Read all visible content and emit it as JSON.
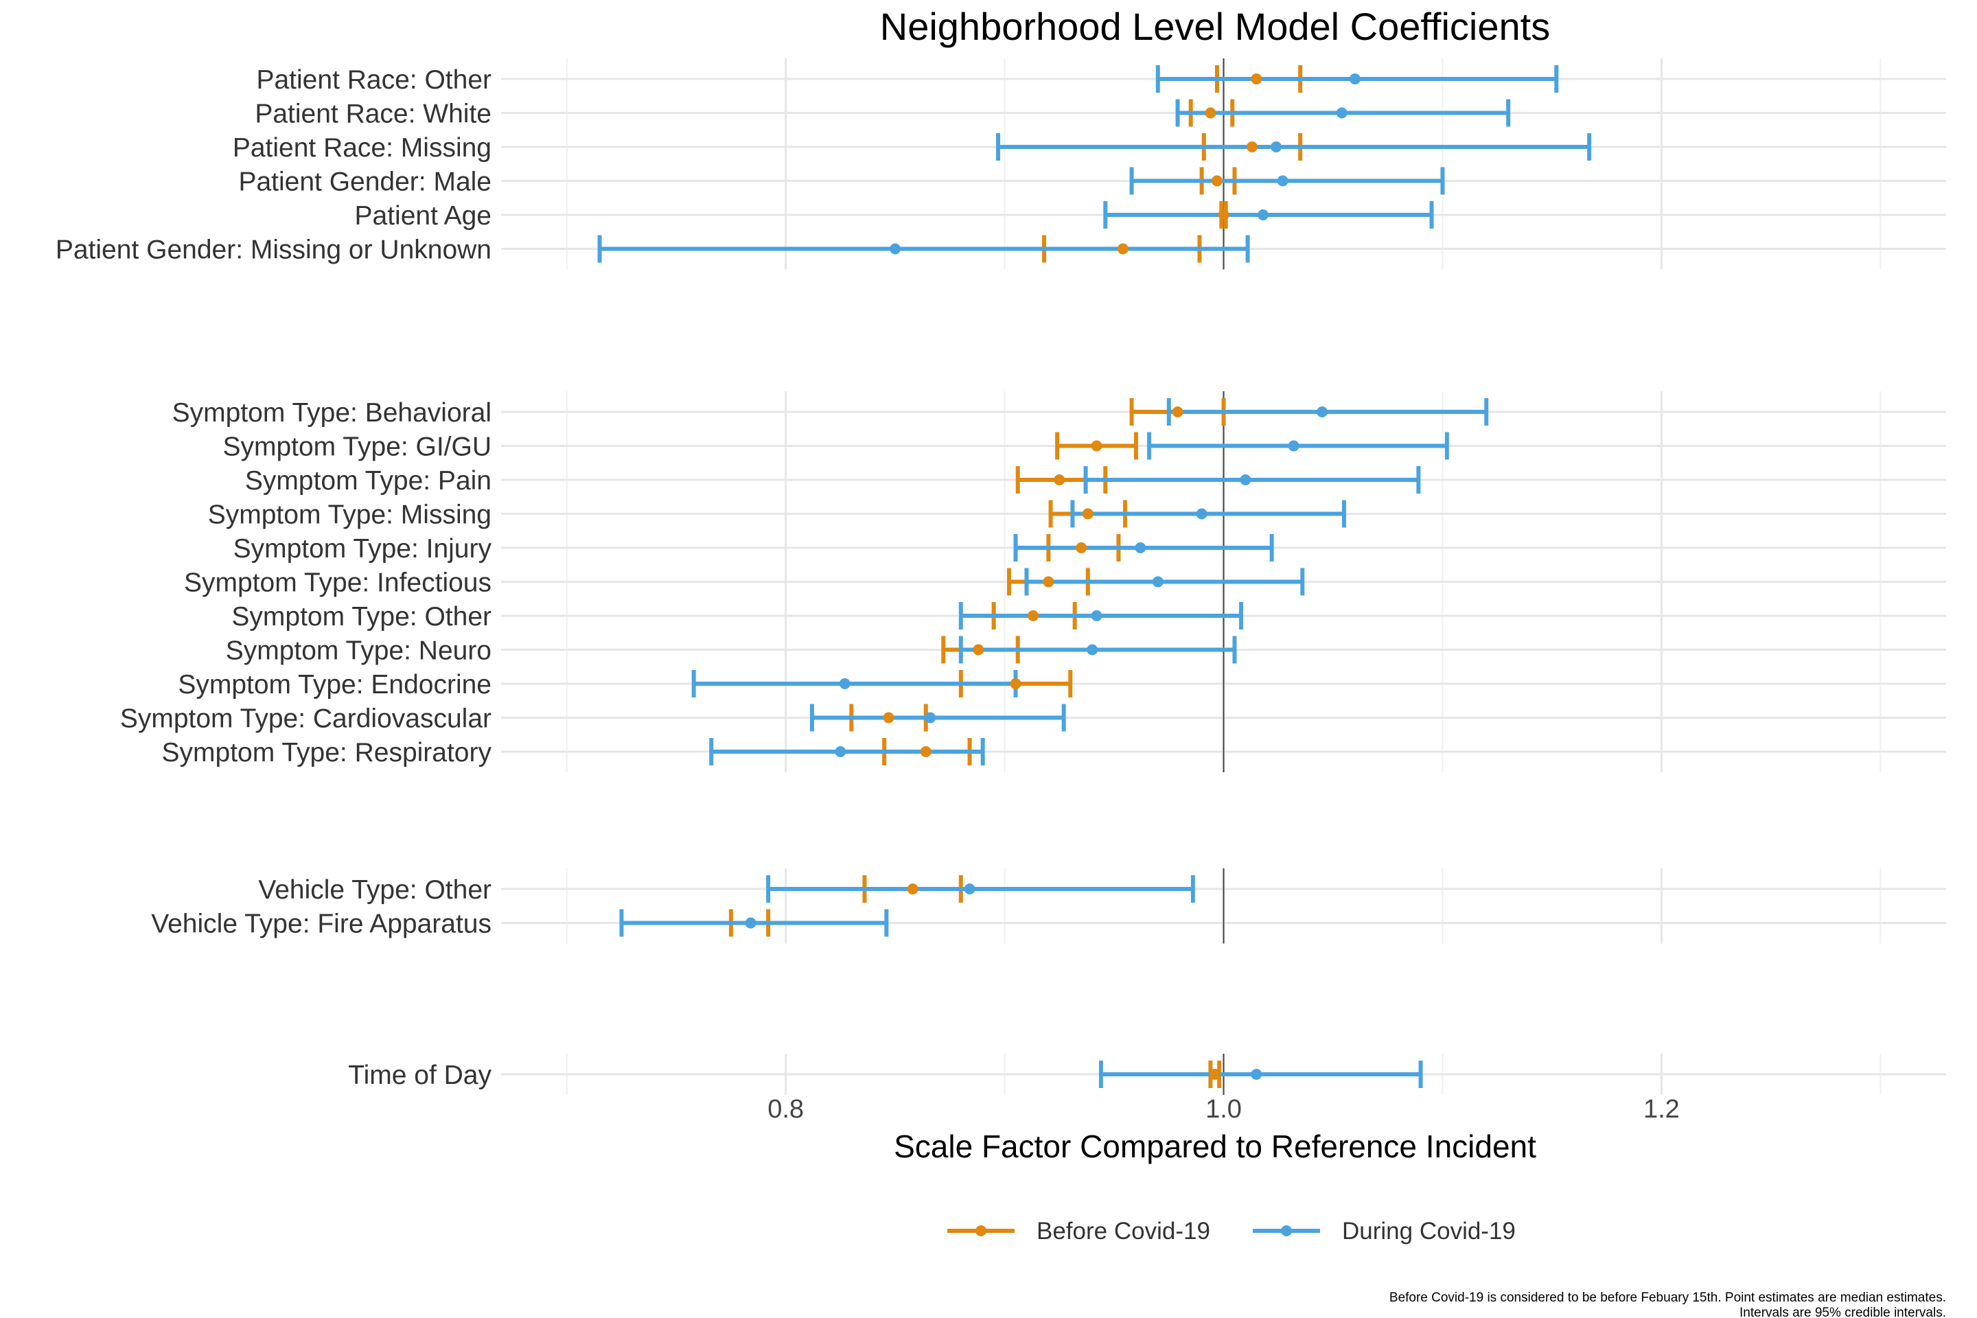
{
  "chart_data": {
    "type": "interval",
    "title": "Neighborhood Level Model Coefficients",
    "xlabel": "Scale Factor Compared to Reference Incident",
    "xlim": [
      0.67,
      1.33
    ],
    "x_ticks": [
      "0.8",
      "1.0",
      "1.2"
    ],
    "x_tick_values": [
      0.8,
      1.0,
      1.2
    ],
    "reference_line": 1.0,
    "grid": true,
    "legend_position": "bottom",
    "series": [
      {
        "key": "before",
        "name": "Before Covid-19",
        "color": "#E0880F"
      },
      {
        "key": "during",
        "name": "During Covid-19",
        "color": "#4AA3DF"
      }
    ],
    "panels": [
      {
        "rows": [
          {
            "label": "Patient Race: Other",
            "before": {
              "lo": 0.997,
              "mid": 1.015,
              "hi": 1.035
            },
            "during": {
              "lo": 0.97,
              "mid": 1.06,
              "hi": 1.152
            }
          },
          {
            "label": "Patient Race: White",
            "before": {
              "lo": 0.985,
              "mid": 0.994,
              "hi": 1.004
            },
            "during": {
              "lo": 0.979,
              "mid": 1.054,
              "hi": 1.13
            }
          },
          {
            "label": "Patient Race: Missing",
            "before": {
              "lo": 0.991,
              "mid": 1.013,
              "hi": 1.035
            },
            "during": {
              "lo": 0.897,
              "mid": 1.024,
              "hi": 1.167
            }
          },
          {
            "label": "Patient Gender: Male",
            "before": {
              "lo": 0.99,
              "mid": 0.997,
              "hi": 1.005
            },
            "during": {
              "lo": 0.958,
              "mid": 1.027,
              "hi": 1.1
            }
          },
          {
            "label": "Patient Age",
            "before": {
              "lo": 0.999,
              "mid": 1.0,
              "hi": 1.001
            },
            "during": {
              "lo": 0.946,
              "mid": 1.018,
              "hi": 1.095
            }
          },
          {
            "label": "Patient Gender: Missing or Unknown",
            "before": {
              "lo": 0.918,
              "mid": 0.954,
              "hi": 0.989
            },
            "during": {
              "lo": 0.715,
              "mid": 0.85,
              "hi": 1.011
            }
          }
        ]
      },
      {
        "rows": [
          {
            "label": "Symptom Type: Behavioral",
            "before": {
              "lo": 0.958,
              "mid": 0.979,
              "hi": 1.0
            },
            "during": {
              "lo": 0.975,
              "mid": 1.045,
              "hi": 1.12
            }
          },
          {
            "label": "Symptom Type: GI/GU",
            "before": {
              "lo": 0.924,
              "mid": 0.942,
              "hi": 0.96
            },
            "during": {
              "lo": 0.966,
              "mid": 1.032,
              "hi": 1.102
            }
          },
          {
            "label": "Symptom Type: Pain",
            "before": {
              "lo": 0.906,
              "mid": 0.925,
              "hi": 0.946
            },
            "during": {
              "lo": 0.937,
              "mid": 1.01,
              "hi": 1.089
            }
          },
          {
            "label": "Symptom Type: Missing",
            "before": {
              "lo": 0.921,
              "mid": 0.938,
              "hi": 0.955
            },
            "during": {
              "lo": 0.931,
              "mid": 0.99,
              "hi": 1.055
            }
          },
          {
            "label": "Symptom Type: Injury",
            "before": {
              "lo": 0.92,
              "mid": 0.935,
              "hi": 0.952
            },
            "during": {
              "lo": 0.905,
              "mid": 0.962,
              "hi": 1.022
            }
          },
          {
            "label": "Symptom Type: Infectious",
            "before": {
              "lo": 0.902,
              "mid": 0.92,
              "hi": 0.938
            },
            "during": {
              "lo": 0.91,
              "mid": 0.97,
              "hi": 1.036
            }
          },
          {
            "label": "Symptom Type: Other",
            "before": {
              "lo": 0.895,
              "mid": 0.913,
              "hi": 0.932
            },
            "during": {
              "lo": 0.88,
              "mid": 0.942,
              "hi": 1.008
            }
          },
          {
            "label": "Symptom Type: Neuro",
            "before": {
              "lo": 0.872,
              "mid": 0.888,
              "hi": 0.906
            },
            "during": {
              "lo": 0.88,
              "mid": 0.94,
              "hi": 1.005
            }
          },
          {
            "label": "Symptom Type: Endocrine",
            "before": {
              "lo": 0.88,
              "mid": 0.905,
              "hi": 0.93
            },
            "during": {
              "lo": 0.758,
              "mid": 0.827,
              "hi": 0.905
            }
          },
          {
            "label": "Symptom Type: Cardiovascular",
            "before": {
              "lo": 0.83,
              "mid": 0.847,
              "hi": 0.864
            },
            "during": {
              "lo": 0.812,
              "mid": 0.866,
              "hi": 0.927
            }
          },
          {
            "label": "Symptom Type: Respiratory",
            "before": {
              "lo": 0.845,
              "mid": 0.864,
              "hi": 0.884
            },
            "during": {
              "lo": 0.766,
              "mid": 0.825,
              "hi": 0.89
            }
          }
        ]
      },
      {
        "rows": [
          {
            "label": "Vehicle Type: Other",
            "before": {
              "lo": 0.836,
              "mid": 0.858,
              "hi": 0.88
            },
            "during": {
              "lo": 0.792,
              "mid": 0.884,
              "hi": 0.986
            }
          },
          {
            "label": "Vehicle Type: Fire Apparatus",
            "before": {
              "lo": 0.775,
              "mid": 0.784,
              "hi": 0.792
            },
            "during": {
              "lo": 0.725,
              "mid": 0.784,
              "hi": 0.846
            }
          }
        ]
      },
      {
        "rows": [
          {
            "label": "Time of Day",
            "before": {
              "lo": 0.994,
              "mid": 0.996,
              "hi": 0.998
            },
            "during": {
              "lo": 0.944,
              "mid": 1.015,
              "hi": 1.09
            }
          }
        ]
      }
    ],
    "caption_lines": [
      "Before Covid-19 is considered to be before Febuary 15th. Point estimates are median estimates.",
      "Intervals are 95% credible intervals."
    ]
  }
}
